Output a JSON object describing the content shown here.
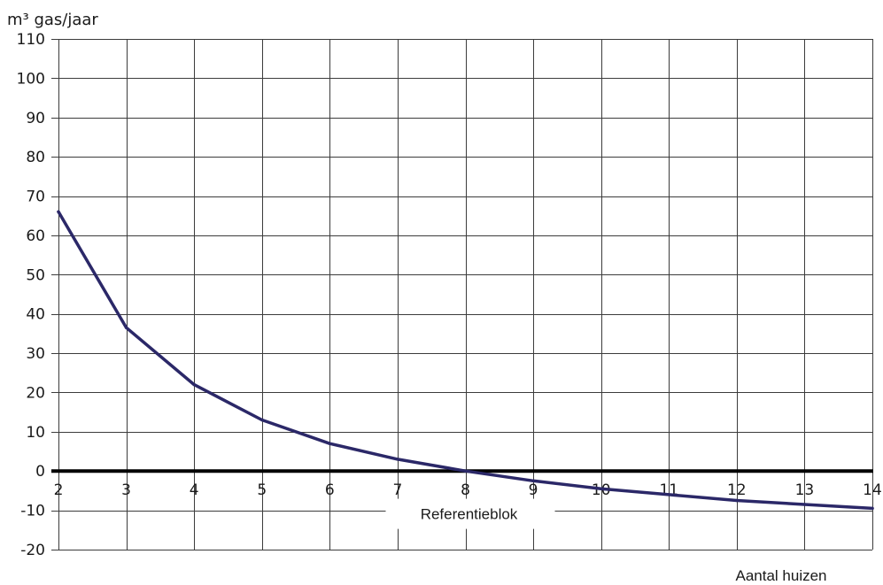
{
  "chart_data": {
    "type": "line",
    "ylabel": "m³ gas/jaar",
    "xlabel": "Aantal huizen",
    "x": [
      2,
      3,
      4,
      5,
      6,
      7,
      8,
      9,
      10,
      11,
      12,
      13,
      14
    ],
    "series": [
      {
        "values": [
          66,
          36.5,
          22,
          13,
          7,
          3,
          0,
          -2.5,
          -4.5,
          -6,
          -7.5,
          -8.5,
          -9.5
        ]
      }
    ],
    "xlim": [
      2,
      14
    ],
    "ylim": [
      -20,
      110
    ],
    "xticks": [
      2,
      3,
      4,
      5,
      6,
      7,
      8,
      9,
      10,
      11,
      12,
      13,
      14
    ],
    "yticks": [
      110,
      100,
      90,
      80,
      70,
      60,
      50,
      40,
      30,
      20,
      10,
      0,
      -10,
      -20
    ],
    "annotation": "Referentieblok",
    "grid": true,
    "zero_line": "bold",
    "colors": {
      "line": "#2b2868",
      "grid": "#3c3c3c",
      "zero_line": "#000000",
      "text": "#1a1a1a",
      "background": "#ffffff"
    }
  }
}
